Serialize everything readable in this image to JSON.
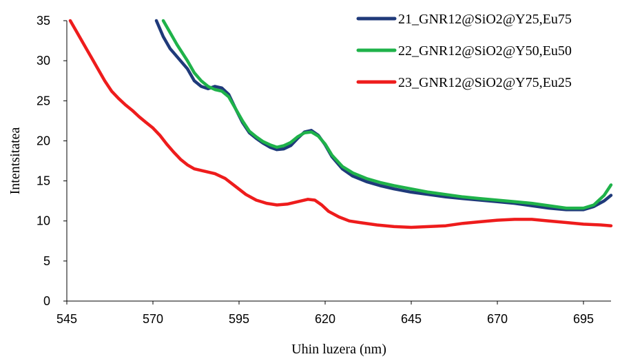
{
  "chart_data": {
    "type": "line",
    "title": "",
    "xlabel": "Uhin luzera (nm)",
    "ylabel": "Intentsitatea",
    "xlim": [
      545,
      703
    ],
    "ylim": [
      0,
      35
    ],
    "x_ticks": [
      545,
      570,
      595,
      620,
      645,
      670,
      695
    ],
    "y_ticks": [
      0,
      5,
      10,
      15,
      20,
      25,
      30,
      35
    ],
    "grid": false,
    "legend_position": "top-right",
    "series": [
      {
        "name": "21_GNR12@SiO2@Y25,Eu75",
        "color": "#1f3a7a",
        "points": [
          [
            571,
            35.0
          ],
          [
            573,
            33.0
          ],
          [
            575,
            31.5
          ],
          [
            577,
            30.5
          ],
          [
            580,
            29.0
          ],
          [
            582,
            27.5
          ],
          [
            584,
            26.8
          ],
          [
            586,
            26.5
          ],
          [
            588,
            26.8
          ],
          [
            590,
            26.6
          ],
          [
            592,
            25.8
          ],
          [
            594,
            24.0
          ],
          [
            596,
            22.3
          ],
          [
            598,
            21.0
          ],
          [
            600,
            20.3
          ],
          [
            602,
            19.7
          ],
          [
            604,
            19.2
          ],
          [
            606,
            18.9
          ],
          [
            608,
            19.0
          ],
          [
            610,
            19.4
          ],
          [
            612,
            20.3
          ],
          [
            614,
            21.1
          ],
          [
            616,
            21.3
          ],
          [
            618,
            20.7
          ],
          [
            620,
            19.5
          ],
          [
            622,
            18.0
          ],
          [
            625,
            16.5
          ],
          [
            628,
            15.6
          ],
          [
            632,
            14.9
          ],
          [
            636,
            14.4
          ],
          [
            640,
            14.0
          ],
          [
            645,
            13.6
          ],
          [
            650,
            13.3
          ],
          [
            655,
            13.0
          ],
          [
            660,
            12.8
          ],
          [
            665,
            12.6
          ],
          [
            670,
            12.4
          ],
          [
            675,
            12.2
          ],
          [
            680,
            11.9
          ],
          [
            685,
            11.6
          ],
          [
            690,
            11.4
          ],
          [
            695,
            11.4
          ],
          [
            698,
            11.8
          ],
          [
            701,
            12.5
          ],
          [
            703,
            13.2
          ]
        ]
      },
      {
        "name": "22_GNR12@SiO2@Y50,Eu50",
        "color": "#1fb24a",
        "points": [
          [
            573,
            35.0
          ],
          [
            575,
            33.5
          ],
          [
            577,
            32.0
          ],
          [
            580,
            30.0
          ],
          [
            582,
            28.5
          ],
          [
            584,
            27.5
          ],
          [
            586,
            26.8
          ],
          [
            588,
            26.4
          ],
          [
            590,
            26.2
          ],
          [
            592,
            25.5
          ],
          [
            594,
            24.0
          ],
          [
            596,
            22.5
          ],
          [
            598,
            21.2
          ],
          [
            600,
            20.5
          ],
          [
            602,
            19.9
          ],
          [
            604,
            19.5
          ],
          [
            606,
            19.2
          ],
          [
            608,
            19.4
          ],
          [
            610,
            19.8
          ],
          [
            612,
            20.5
          ],
          [
            614,
            21.0
          ],
          [
            616,
            21.1
          ],
          [
            618,
            20.6
          ],
          [
            620,
            19.6
          ],
          [
            622,
            18.2
          ],
          [
            625,
            16.8
          ],
          [
            628,
            16.0
          ],
          [
            632,
            15.3
          ],
          [
            636,
            14.8
          ],
          [
            640,
            14.4
          ],
          [
            645,
            14.0
          ],
          [
            650,
            13.6
          ],
          [
            655,
            13.3
          ],
          [
            660,
            13.0
          ],
          [
            665,
            12.8
          ],
          [
            670,
            12.6
          ],
          [
            675,
            12.4
          ],
          [
            680,
            12.2
          ],
          [
            685,
            11.9
          ],
          [
            690,
            11.6
          ],
          [
            695,
            11.6
          ],
          [
            698,
            12.0
          ],
          [
            701,
            13.2
          ],
          [
            703,
            14.5
          ]
        ]
      },
      {
        "name": "23_GNR12@SiO2@Y75,Eu25",
        "color": "#ee1c1c",
        "points": [
          [
            546,
            35.0
          ],
          [
            548,
            33.5
          ],
          [
            550,
            32.0
          ],
          [
            552,
            30.5
          ],
          [
            554,
            29.0
          ],
          [
            556,
            27.5
          ],
          [
            558,
            26.2
          ],
          [
            560,
            25.3
          ],
          [
            562,
            24.5
          ],
          [
            564,
            23.8
          ],
          [
            566,
            23.0
          ],
          [
            568,
            22.3
          ],
          [
            570,
            21.6
          ],
          [
            572,
            20.7
          ],
          [
            574,
            19.6
          ],
          [
            576,
            18.6
          ],
          [
            578,
            17.7
          ],
          [
            580,
            17.0
          ],
          [
            582,
            16.5
          ],
          [
            585,
            16.2
          ],
          [
            588,
            15.9
          ],
          [
            591,
            15.3
          ],
          [
            594,
            14.3
          ],
          [
            597,
            13.3
          ],
          [
            600,
            12.6
          ],
          [
            603,
            12.2
          ],
          [
            606,
            12.0
          ],
          [
            609,
            12.1
          ],
          [
            612,
            12.4
          ],
          [
            615,
            12.7
          ],
          [
            617,
            12.6
          ],
          [
            619,
            12.0
          ],
          [
            621,
            11.2
          ],
          [
            624,
            10.5
          ],
          [
            627,
            10.0
          ],
          [
            630,
            9.8
          ],
          [
            635,
            9.5
          ],
          [
            640,
            9.3
          ],
          [
            645,
            9.2
          ],
          [
            650,
            9.3
          ],
          [
            655,
            9.4
          ],
          [
            660,
            9.7
          ],
          [
            665,
            9.9
          ],
          [
            670,
            10.1
          ],
          [
            675,
            10.2
          ],
          [
            680,
            10.2
          ],
          [
            685,
            10.0
          ],
          [
            690,
            9.8
          ],
          [
            695,
            9.6
          ],
          [
            700,
            9.5
          ],
          [
            703,
            9.4
          ]
        ]
      }
    ]
  }
}
